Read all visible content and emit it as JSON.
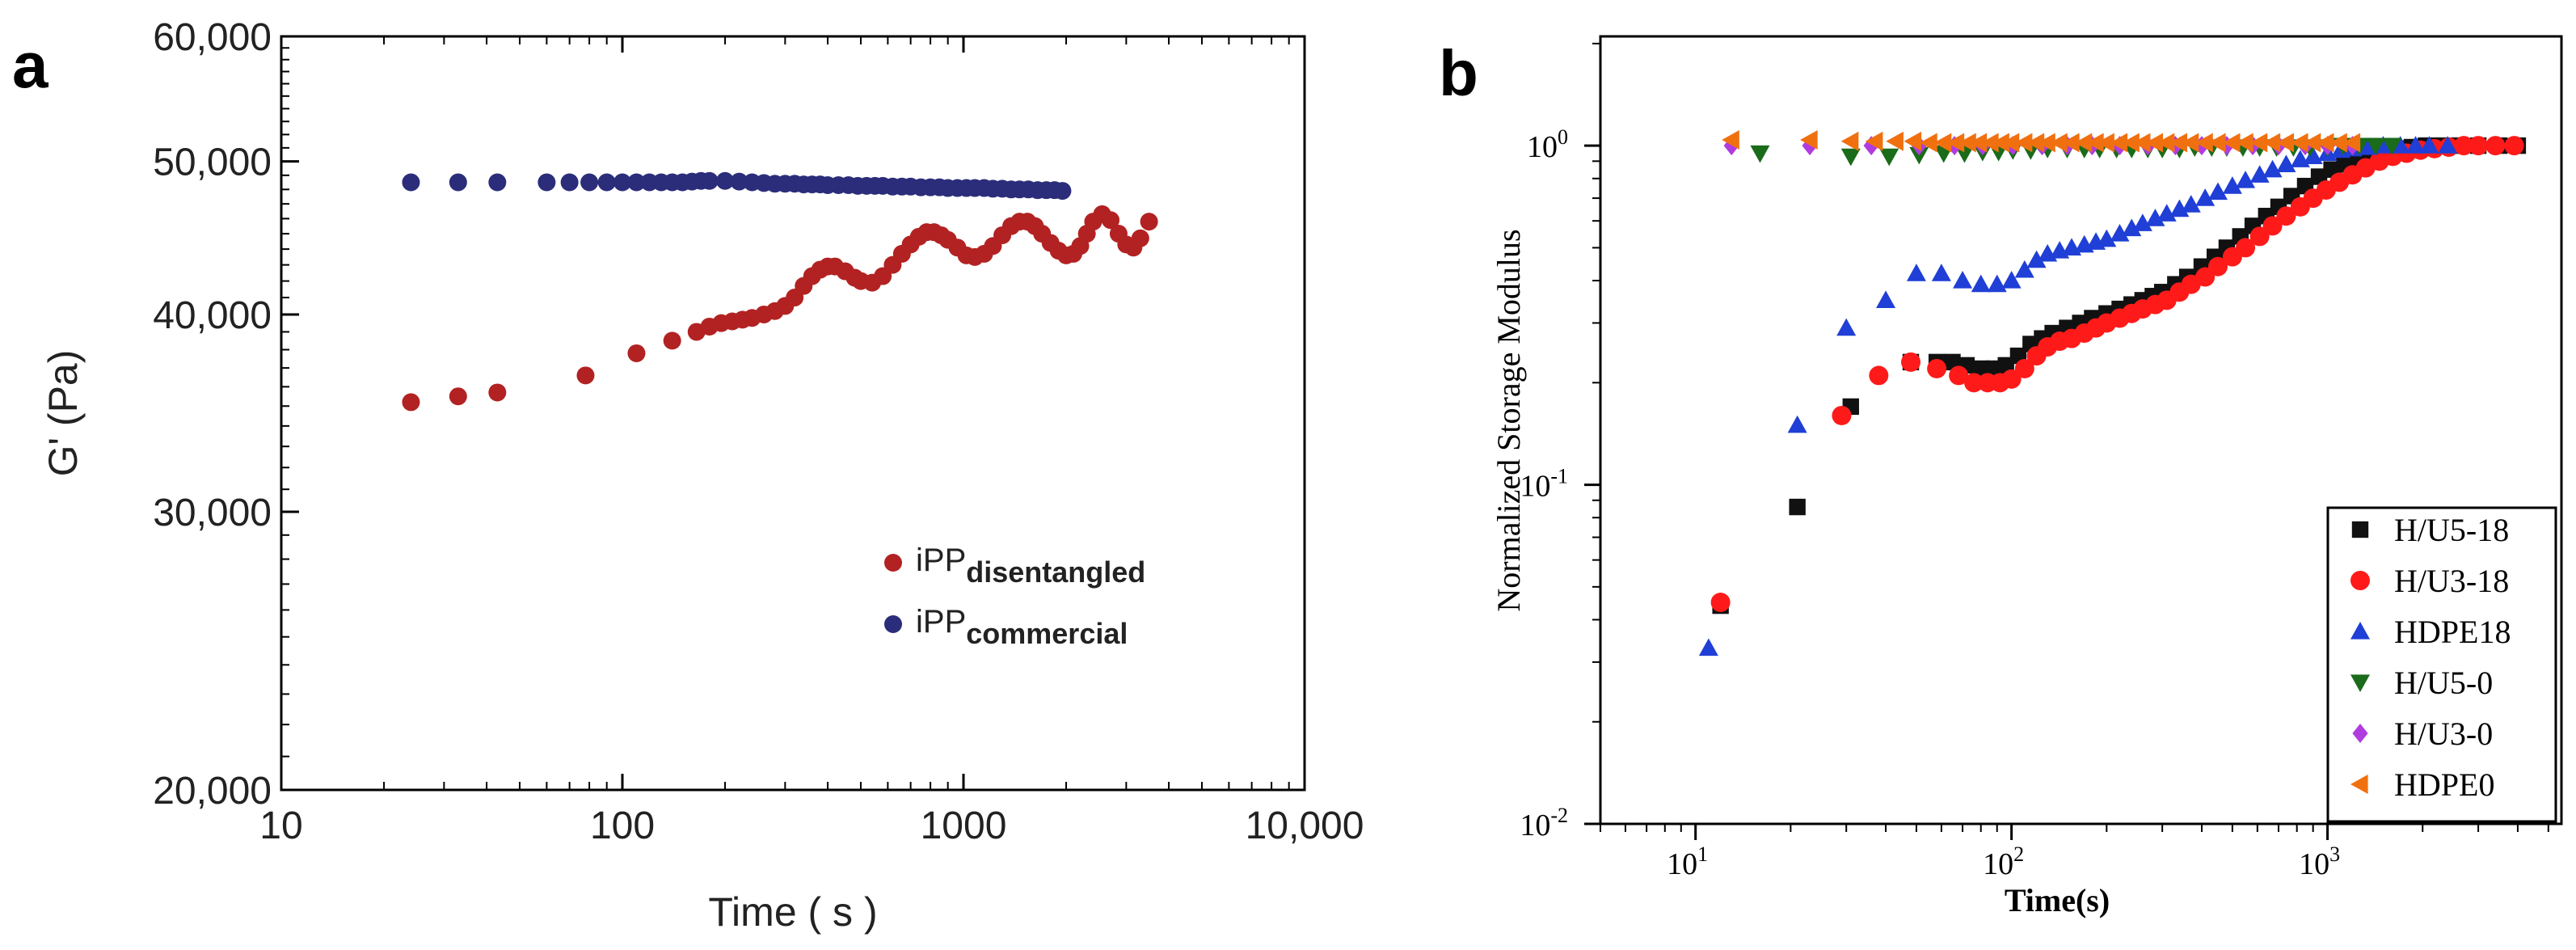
{
  "chart_data": [
    {
      "panel_label": "a",
      "type": "scatter",
      "xscale": "log",
      "yscale": "log",
      "xlabel": "Time ( s )",
      "ylabel": "G' (Pa)",
      "xlim": [
        10,
        10000
      ],
      "ylim": [
        20000,
        60000
      ],
      "xtick_values": [
        10,
        100,
        1000,
        10000
      ],
      "xtick_labels": [
        "10",
        "100",
        "1000",
        "10,000"
      ],
      "ytick_values": [
        20000,
        30000,
        40000,
        50000,
        60000
      ],
      "ytick_labels": [
        "20,000",
        "30,000",
        "40,000",
        "50,000",
        "60,000"
      ],
      "legend_position": "lower-right",
      "series": [
        {
          "name": "iPP",
          "subscript": "disentangled",
          "color": "#b22222",
          "marker": "circle",
          "x": [
            24,
            33,
            43,
            78,
            110,
            140,
            165,
            180,
            195,
            210,
            225,
            240,
            260,
            280,
            300,
            320,
            340,
            360,
            380,
            400,
            420,
            450,
            480,
            500,
            540,
            580,
            620,
            660,
            700,
            740,
            780,
            820,
            860,
            900,
            960,
            1020,
            1080,
            1150,
            1220,
            1300,
            1380,
            1460,
            1540,
            1620,
            1700,
            1800,
            1900,
            2000,
            2100,
            2200,
            2300,
            2400,
            2550,
            2700,
            2850,
            3000,
            3150,
            3300,
            3500
          ],
          "y": [
            35200,
            35500,
            35700,
            36600,
            37800,
            38500,
            39000,
            39300,
            39500,
            39600,
            39700,
            39800,
            40000,
            40200,
            40500,
            41000,
            41700,
            42300,
            42700,
            42900,
            42900,
            42600,
            42200,
            42000,
            41900,
            42300,
            43000,
            43700,
            44300,
            44800,
            45100,
            45100,
            44900,
            44600,
            44100,
            43600,
            43500,
            43700,
            44200,
            44900,
            45500,
            45800,
            45800,
            45500,
            45000,
            44400,
            43900,
            43600,
            43700,
            44200,
            45000,
            45800,
            46300,
            45900,
            45000,
            44300,
            44100,
            44700,
            45800
          ]
        },
        {
          "name": "iPP",
          "subscript": "commercial",
          "color": "#2b2d7a",
          "marker": "circle",
          "x": [
            24,
            33,
            43,
            60,
            70,
            80,
            90,
            100,
            110,
            120,
            130,
            140,
            150,
            160,
            170,
            180,
            200,
            220,
            240,
            260,
            280,
            300,
            320,
            340,
            360,
            380,
            400,
            430,
            460,
            490,
            520,
            550,
            580,
            620,
            660,
            700,
            750,
            800,
            850,
            900,
            960,
            1020,
            1080,
            1150,
            1220,
            1300,
            1380,
            1460,
            1550,
            1650,
            1750,
            1850,
            1950
          ],
          "y": [
            48500,
            48500,
            48500,
            48500,
            48500,
            48500,
            48500,
            48500,
            48500,
            48500,
            48500,
            48500,
            48500,
            48550,
            48600,
            48600,
            48600,
            48550,
            48500,
            48450,
            48400,
            48400,
            48400,
            48350,
            48350,
            48350,
            48300,
            48300,
            48300,
            48250,
            48250,
            48250,
            48250,
            48200,
            48200,
            48200,
            48150,
            48150,
            48150,
            48100,
            48100,
            48100,
            48100,
            48100,
            48050,
            48050,
            48000,
            48000,
            48000,
            47950,
            47950,
            47950,
            47900
          ]
        }
      ]
    },
    {
      "panel_label": "b",
      "type": "scatter",
      "xscale": "log",
      "yscale": "log",
      "xlabel": "Time(s)",
      "ylabel": "Normalized Storage Modulus",
      "xlim": [
        5,
        5500
      ],
      "ylim": [
        0.01,
        2.1
      ],
      "xtick_exponents": [
        1,
        2,
        3
      ],
      "ytick_exponents": [
        -2,
        -1,
        0
      ],
      "tick_base": "10",
      "legend_position": "lower-right",
      "series": [
        {
          "name": "H/U5-18",
          "color": "#111111",
          "marker": "square",
          "x": [
            12,
            21,
            31,
            48,
            58,
            65,
            72,
            80,
            88,
            96,
            105,
            115,
            125,
            135,
            150,
            165,
            180,
            200,
            220,
            240,
            260,
            280,
            300,
            330,
            360,
            400,
            440,
            480,
            530,
            580,
            640,
            700,
            770,
            850,
            940,
            1030,
            1130,
            1250,
            1380,
            1520,
            1680,
            1850,
            2050,
            2300,
            2600,
            3000,
            3500,
            4000
          ],
          "y": [
            0.044,
            0.086,
            0.17,
            0.23,
            0.23,
            0.23,
            0.225,
            0.22,
            0.22,
            0.225,
            0.24,
            0.26,
            0.27,
            0.28,
            0.29,
            0.3,
            0.31,
            0.32,
            0.33,
            0.34,
            0.35,
            0.36,
            0.37,
            0.39,
            0.41,
            0.44,
            0.47,
            0.5,
            0.54,
            0.58,
            0.62,
            0.66,
            0.71,
            0.76,
            0.81,
            0.85,
            0.88,
            0.91,
            0.94,
            0.96,
            0.98,
            0.99,
            1.0,
            1.0,
            1.0,
            1.0,
            1.0,
            1.0
          ]
        },
        {
          "name": "H/U3-18",
          "color": "#ff1a1a",
          "marker": "circle",
          "x": [
            12,
            29,
            38,
            48,
            58,
            68,
            76,
            84,
            92,
            100,
            110,
            120,
            130,
            142,
            155,
            170,
            185,
            200,
            220,
            240,
            260,
            285,
            310,
            340,
            370,
            410,
            450,
            500,
            550,
            610,
            670,
            740,
            820,
            900,
            990,
            1090,
            1200,
            1320,
            1460,
            1610,
            1780,
            1970,
            2180,
            2420,
            2700,
            3000,
            3400,
            3900
          ],
          "y": [
            0.045,
            0.16,
            0.21,
            0.23,
            0.22,
            0.21,
            0.2,
            0.2,
            0.2,
            0.205,
            0.22,
            0.24,
            0.255,
            0.265,
            0.27,
            0.28,
            0.29,
            0.3,
            0.31,
            0.32,
            0.33,
            0.34,
            0.35,
            0.37,
            0.39,
            0.41,
            0.44,
            0.47,
            0.5,
            0.54,
            0.58,
            0.62,
            0.66,
            0.7,
            0.74,
            0.78,
            0.82,
            0.86,
            0.9,
            0.93,
            0.95,
            0.97,
            0.98,
            0.99,
            1.0,
            1.0,
            1.0,
            1.0
          ]
        },
        {
          "name": "HDPE18",
          "color": "#1f3fd6",
          "marker": "triangle-up",
          "x": [
            11,
            21,
            30,
            40,
            50,
            60,
            70,
            80,
            90,
            100,
            110,
            120,
            130,
            142,
            155,
            170,
            185,
            200,
            220,
            240,
            260,
            285,
            310,
            340,
            370,
            410,
            450,
            500,
            550,
            610,
            670,
            740,
            820,
            900,
            1000,
            1100,
            1200,
            1350,
            1500,
            1700,
            1900,
            2100,
            2400
          ],
          "y": [
            0.033,
            0.15,
            0.29,
            0.35,
            0.42,
            0.42,
            0.4,
            0.39,
            0.39,
            0.4,
            0.43,
            0.46,
            0.48,
            0.49,
            0.5,
            0.51,
            0.52,
            0.53,
            0.55,
            0.57,
            0.59,
            0.61,
            0.63,
            0.65,
            0.67,
            0.7,
            0.73,
            0.76,
            0.79,
            0.82,
            0.85,
            0.88,
            0.91,
            0.93,
            0.95,
            0.97,
            0.98,
            0.99,
            1.0,
            1.0,
            1.0,
            1.0,
            1.0
          ]
        },
        {
          "name": "H/U5-0",
          "color": "#1a6b1a",
          "marker": "triangle-down",
          "x": [
            16,
            31,
            41,
            51,
            61,
            71,
            81,
            91,
            101,
            115,
            130,
            150,
            170,
            190,
            215,
            240,
            270,
            300,
            340,
            380,
            430,
            480,
            540,
            610,
            690,
            780,
            880,
            1000,
            1120,
            1260,
            1420,
            1600
          ],
          "y": [
            0.95,
            0.93,
            0.93,
            0.94,
            0.95,
            0.95,
            0.96,
            0.96,
            0.97,
            0.97,
            0.98,
            0.98,
            0.98,
            0.98,
            0.98,
            0.98,
            0.98,
            0.98,
            0.98,
            0.99,
            0.99,
            0.99,
            0.99,
            0.99,
            0.99,
            0.99,
            0.99,
            0.99,
            1.0,
            1.0,
            1.0,
            1.0
          ]
        },
        {
          "name": "H/U3-0",
          "color": "#b03ce0",
          "marker": "diamond",
          "x": [
            13,
            23,
            36,
            51,
            66,
            81,
            101,
            125,
            150,
            180,
            220,
            270,
            330,
            400,
            480,
            580,
            700,
            850,
            1000,
            1200
          ],
          "y": [
            1.0,
            1.0,
            1.0,
            1.0,
            1.0,
            1.0,
            1.0,
            1.0,
            1.0,
            1.0,
            1.0,
            1.0,
            1.0,
            1.0,
            1.0,
            1.0,
            1.0,
            1.0,
            1.0,
            1.0
          ]
        },
        {
          "name": "HDPE0",
          "color": "#f07010",
          "marker": "triangle-left",
          "x": [
            13,
            23,
            31,
            37,
            43,
            49,
            55,
            61,
            67,
            73,
            79,
            86,
            93,
            100,
            110,
            120,
            130,
            142,
            155,
            170,
            185,
            200,
            220,
            240,
            260,
            285,
            310,
            340,
            370,
            410,
            450,
            500,
            550,
            610,
            670,
            740,
            820,
            900,
            990,
            1090,
            1200
          ],
          "y": [
            1.04,
            1.04,
            1.03,
            1.03,
            1.03,
            1.03,
            1.02,
            1.02,
            1.02,
            1.02,
            1.02,
            1.02,
            1.02,
            1.02,
            1.02,
            1.02,
            1.02,
            1.02,
            1.02,
            1.02,
            1.02,
            1.02,
            1.02,
            1.02,
            1.02,
            1.02,
            1.02,
            1.02,
            1.02,
            1.02,
            1.02,
            1.02,
            1.02,
            1.02,
            1.02,
            1.02,
            1.02,
            1.02,
            1.02,
            1.02,
            1.02
          ]
        }
      ]
    }
  ]
}
